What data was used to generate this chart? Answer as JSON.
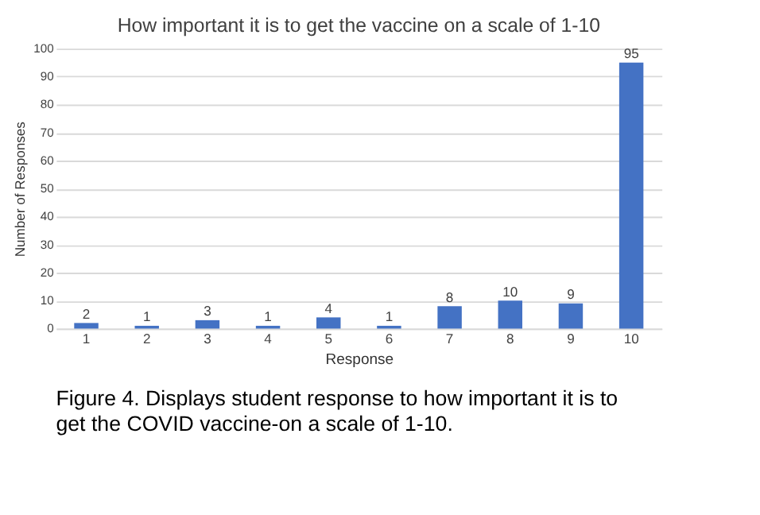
{
  "chart_data": {
    "type": "bar",
    "title": "How important it is to get the vaccine on a scale of 1-10",
    "categories": [
      "1",
      "2",
      "3",
      "4",
      "5",
      "6",
      "7",
      "8",
      "9",
      "10"
    ],
    "values": [
      2,
      1,
      3,
      1,
      4,
      1,
      8,
      10,
      9,
      95
    ],
    "color": "#4472c4",
    "xlabel": "Response",
    "ylabel": "Number of Responses",
    "ylim": [
      0,
      100
    ],
    "yticks": [
      0,
      10,
      20,
      30,
      40,
      50,
      60,
      70,
      80,
      90,
      100
    ],
    "grid": "y",
    "data_labels": true,
    "annotations": [
      "Figure 4.  Displays student response to how important it is to get the COVID vaccine-on a scale of 1-10."
    ]
  }
}
